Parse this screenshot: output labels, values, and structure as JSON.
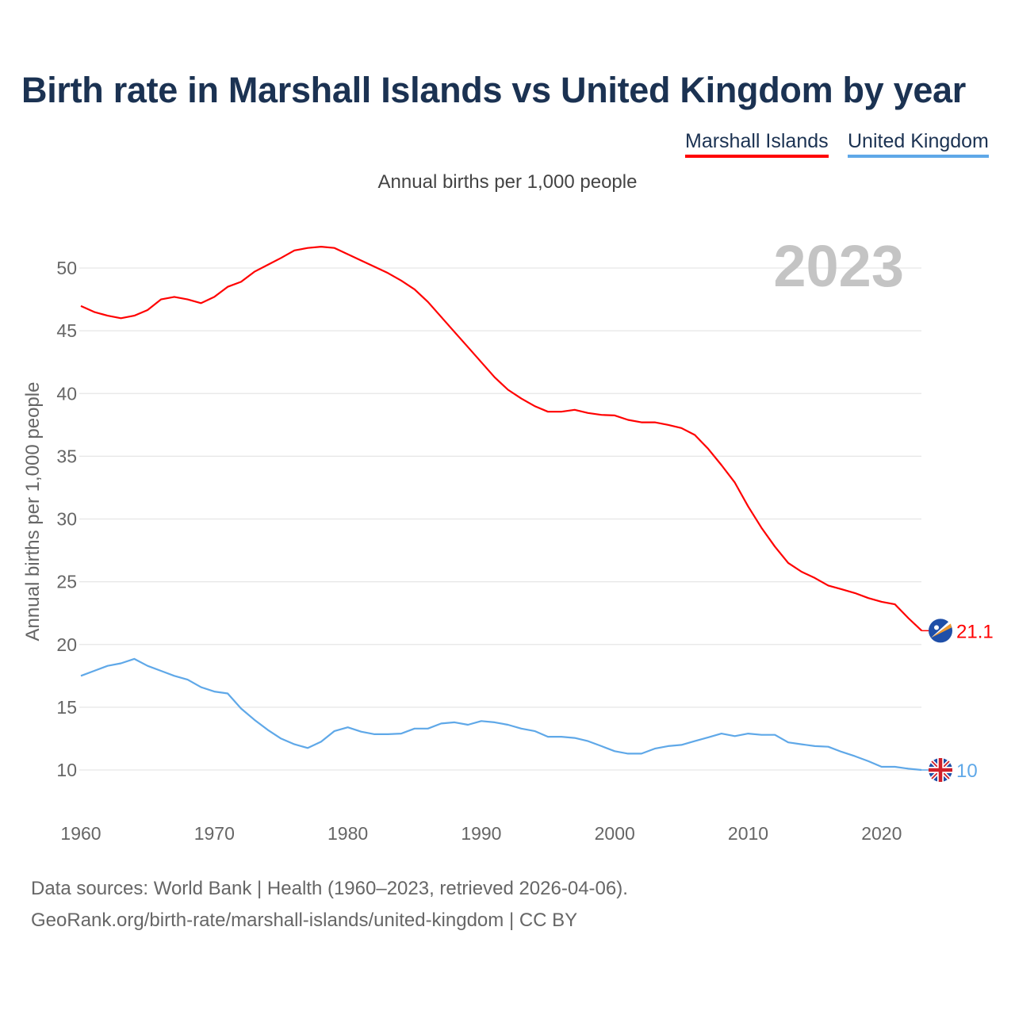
{
  "chart_data": {
    "type": "line",
    "title": "Birth rate in Marshall Islands vs United Kingdom by year",
    "subtitle": "Annual births per 1,000 people",
    "xlabel": "",
    "ylabel": "Annual births per 1,000 people",
    "year_label": "2023",
    "x_start": 1960,
    "x_ticks": [
      "1960",
      "1970",
      "1980",
      "1990",
      "2000",
      "2010",
      "2020"
    ],
    "y_ticks": [
      "10",
      "15",
      "20",
      "25",
      "30",
      "35",
      "40",
      "45",
      "50"
    ],
    "ylim": [
      10,
      50
    ],
    "grid": true,
    "legend_position": "top-right",
    "series": [
      {
        "name": "Marshall Islands",
        "color": "#ff0000",
        "end_label": "21.1",
        "flag": "marshall-islands-flag",
        "values": [
          46.97,
          46.5,
          46.2,
          46.0,
          46.2,
          46.65,
          47.5,
          47.7,
          47.5,
          47.2,
          47.7,
          48.5,
          48.9,
          49.7,
          50.25,
          50.8,
          51.4,
          51.6,
          51.7,
          51.6,
          51.1,
          50.6,
          50.1,
          49.6,
          49.0,
          48.3,
          47.3,
          46.1,
          44.9,
          43.7,
          42.5,
          41.3,
          40.3,
          39.6,
          39.0,
          38.55,
          38.55,
          38.7,
          38.45,
          38.3,
          38.25,
          37.9,
          37.7,
          37.7,
          37.5,
          37.25,
          36.7,
          35.6,
          34.3,
          32.9,
          31.0,
          29.3,
          27.8,
          26.5,
          25.8,
          25.3,
          24.7,
          24.4,
          24.1,
          23.7,
          23.4,
          23.2,
          22.1,
          21.1
        ]
      },
      {
        "name": "United Kingdom",
        "color": "#5fa8e8",
        "end_label": "10",
        "flag": "united-kingdom-flag",
        "values": [
          17.5,
          17.9,
          18.3,
          18.5,
          18.85,
          18.3,
          17.9,
          17.5,
          17.2,
          16.6,
          16.25,
          16.1,
          14.9,
          14.0,
          13.2,
          12.5,
          12.05,
          11.75,
          12.25,
          13.1,
          13.4,
          13.05,
          12.85,
          12.85,
          12.9,
          13.3,
          13.3,
          13.7,
          13.8,
          13.6,
          13.9,
          13.8,
          13.6,
          13.3,
          13.1,
          12.65,
          12.65,
          12.55,
          12.3,
          11.9,
          11.5,
          11.3,
          11.3,
          11.7,
          11.9,
          12.0,
          12.3,
          12.6,
          12.9,
          12.7,
          12.9,
          12.8,
          12.8,
          12.2,
          12.05,
          11.9,
          11.85,
          11.45,
          11.1,
          10.7,
          10.25,
          10.25,
          10.1,
          10.0
        ]
      }
    ]
  },
  "footer": {
    "line1": "Data sources: World Bank | Health (1960–2023, retrieved 2026-04-06).",
    "line2": "GeoRank.org/birth-rate/marshall-islands/united-kingdom | CC BY"
  }
}
